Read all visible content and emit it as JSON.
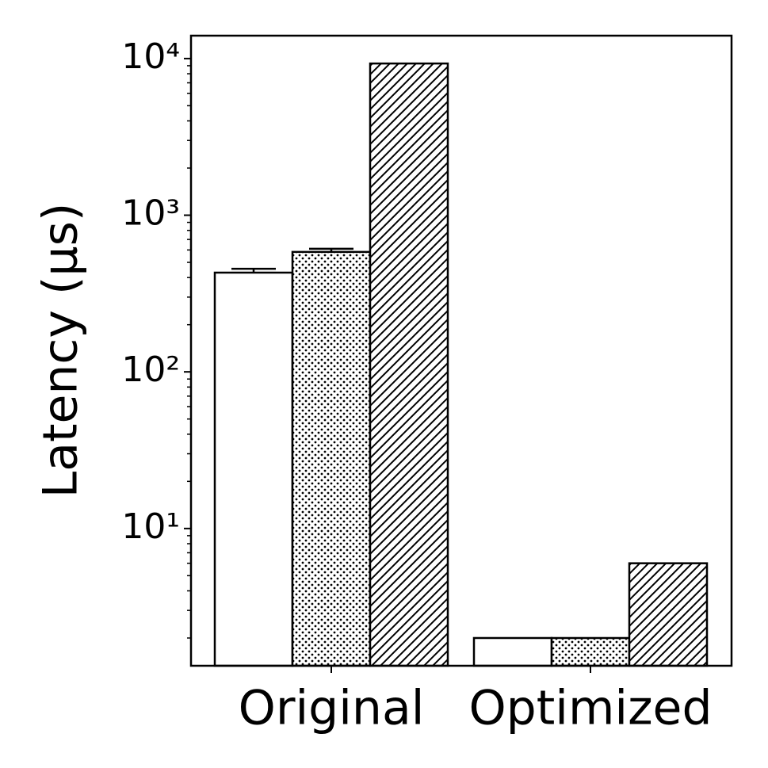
{
  "chart_data": {
    "type": "bar",
    "y_label": "Latency (μs)",
    "categories": [
      "Original",
      "Optimized"
    ],
    "series": [
      {
        "color": "#ffffff",
        "edgecolor": "#000000",
        "hatch": "",
        "values": [
          430,
          2
        ],
        "errors": [
          25,
          0
        ]
      },
      {
        "color": "#ffffff",
        "edgecolor": "#000000",
        "hatch": "..",
        "values": [
          583,
          2
        ],
        "errors": [
          28,
          0
        ]
      },
      {
        "color": "#ffffff",
        "edgecolor": "#000000",
        "hatch": "///",
        "values": [
          9300,
          6
        ],
        "errors": [
          0,
          0
        ]
      }
    ],
    "ylog": true,
    "ylim": [
      1.33,
      14000
    ],
    "yticks": [
      {
        "value": 10,
        "label": "10¹"
      },
      {
        "value": 100,
        "label": "10²"
      },
      {
        "value": 1000,
        "label": "10³"
      },
      {
        "value": 10000,
        "label": "10⁴"
      }
    ],
    "grid": false
  }
}
